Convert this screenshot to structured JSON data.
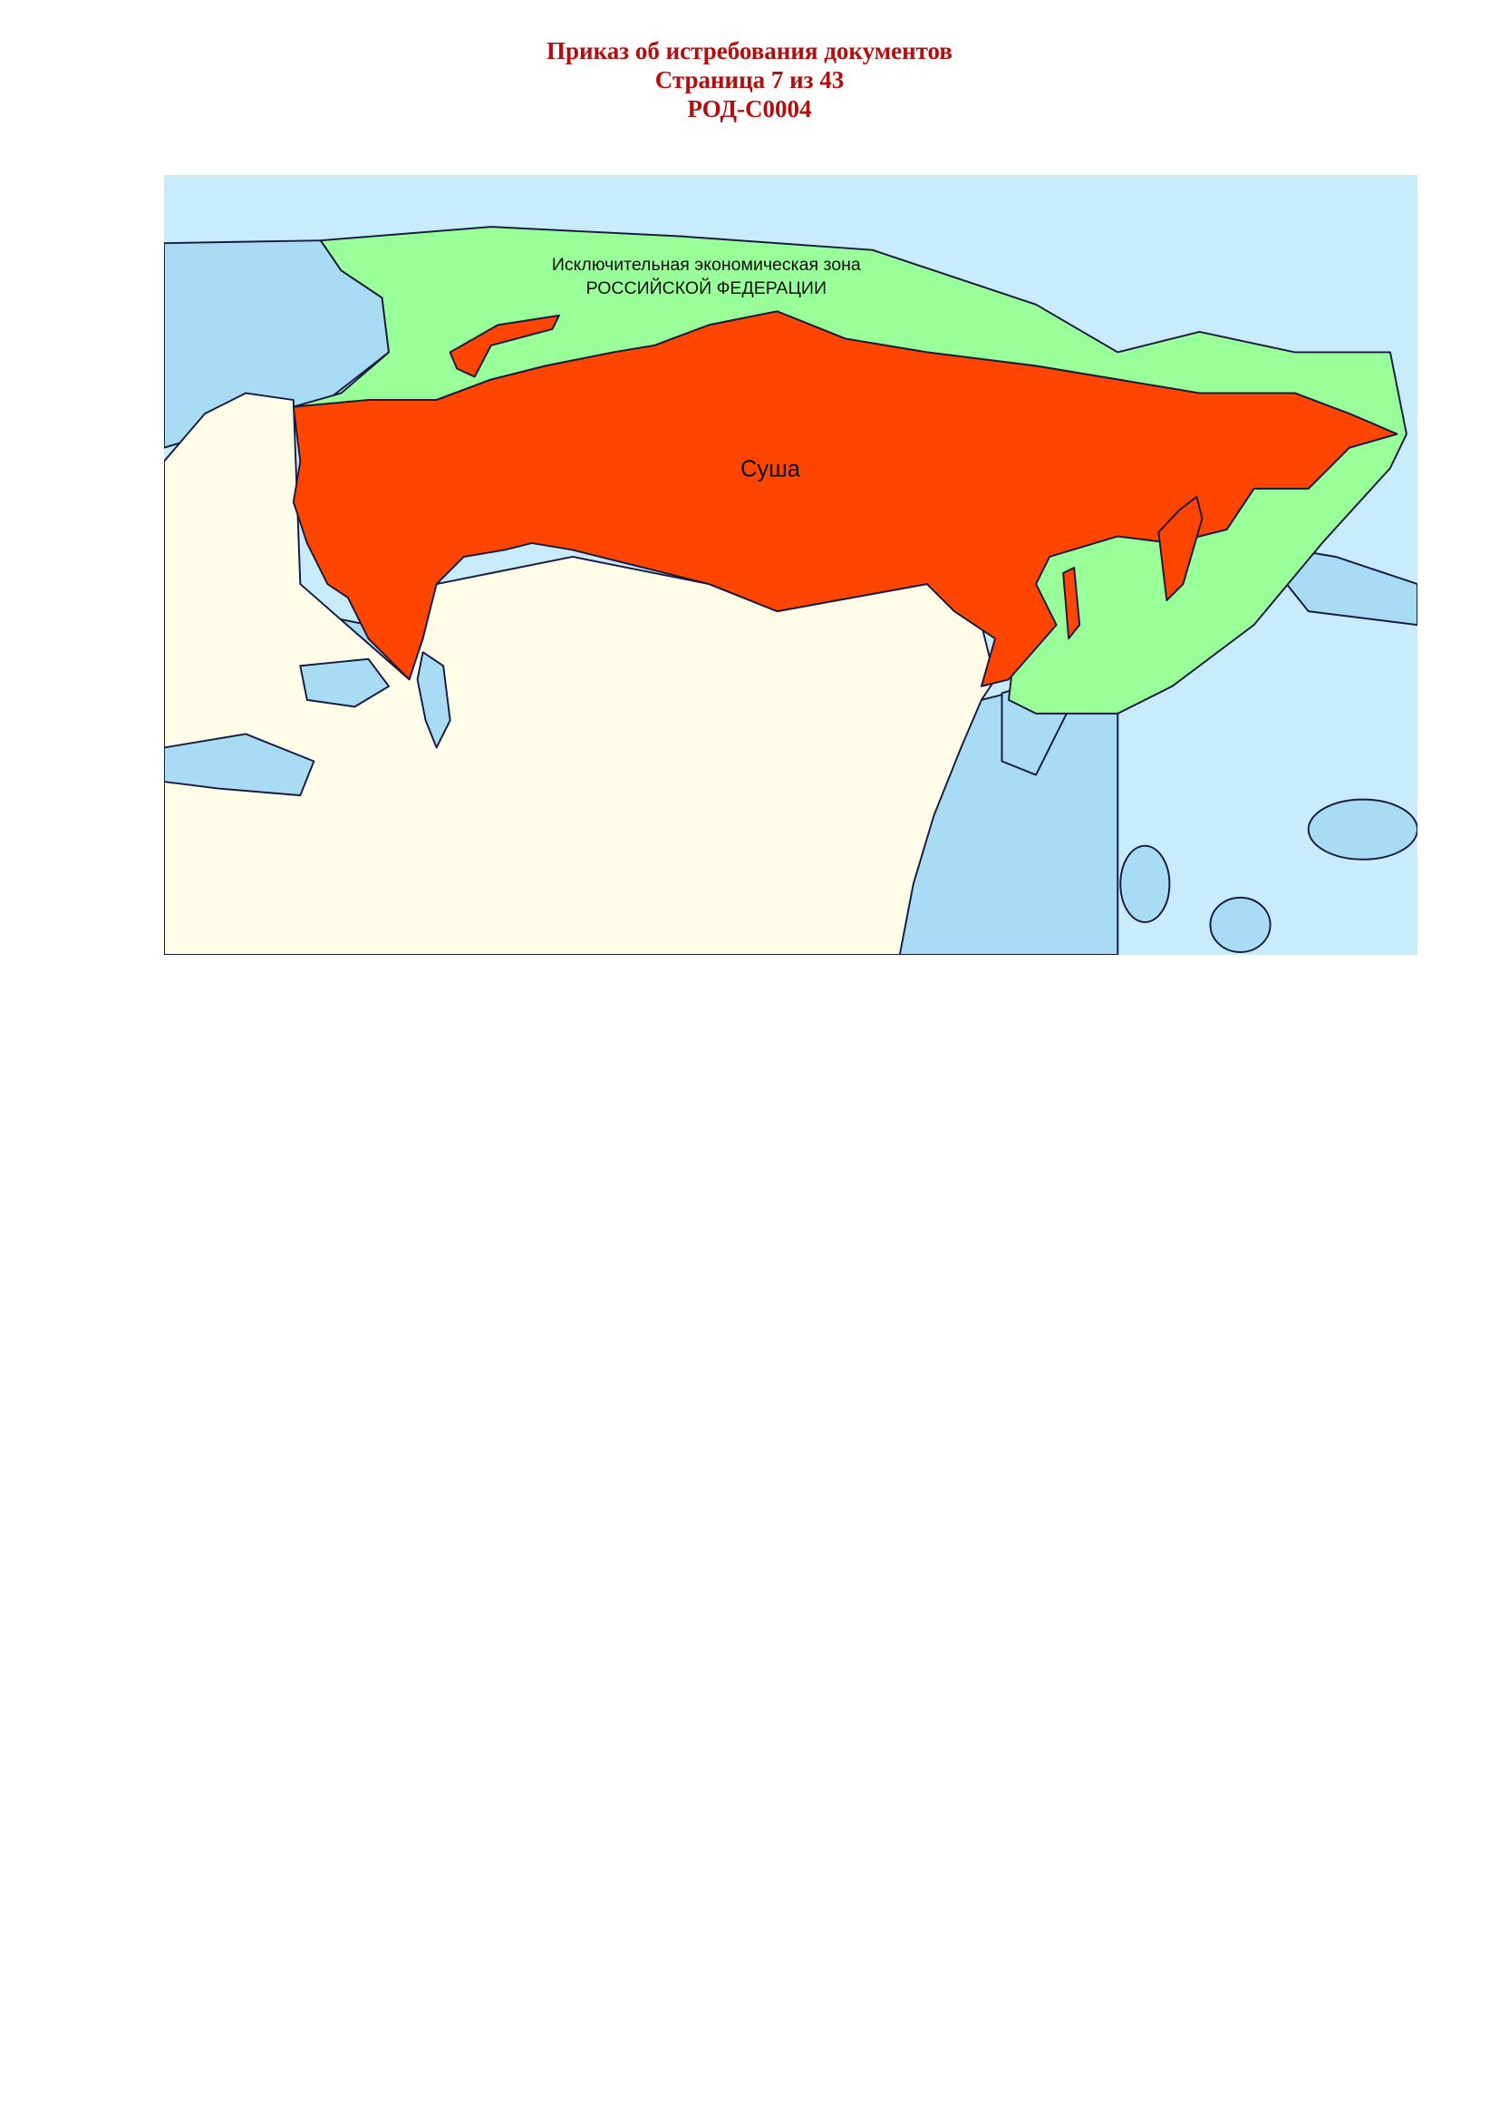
{
  "header": {
    "title": "Приказ об истребования документов",
    "page": "Страница 7 из 43",
    "code": "РОД-С0004"
  },
  "map": {
    "eez_label_line1": "Исключительная экономическая зона",
    "eez_label_line2": "РОССИЙСКОЙ ФЕДЕРАЦИИ",
    "land_label": "Суша",
    "colors": {
      "russia_land": "#ff4500",
      "eez": "#99ff99",
      "ocean": "#c8ecfb",
      "shelf_sea": "#a8dcf5",
      "other_land": "#fffde8"
    }
  }
}
